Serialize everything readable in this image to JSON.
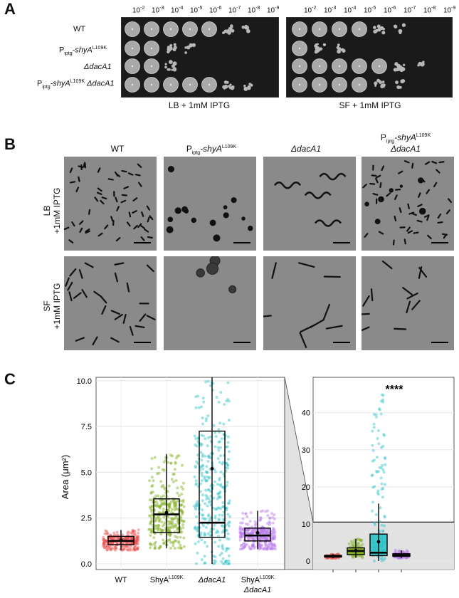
{
  "panels": {
    "A": "A",
    "B": "B",
    "C": "C"
  },
  "panelA": {
    "dilutions": [
      "10",
      "10",
      "10",
      "10",
      "10",
      "10",
      "10",
      "10"
    ],
    "dilution_exponents": [
      "-2",
      "-3",
      "-4",
      "-5",
      "-6",
      "-7",
      "-8",
      "-9"
    ],
    "strains": [
      {
        "base": "WT",
        "sub": "",
        "gene": "",
        "sup": "",
        "extra": ""
      },
      {
        "base": "P",
        "sub": "iptg",
        "gene": "-shyA",
        "sup": "L109K",
        "extra": ""
      },
      {
        "base": "",
        "sub": "",
        "gene": "ΔdacA1",
        "sup": "",
        "extra": ""
      },
      {
        "base": "P",
        "sub": "iptg",
        "gene": "-shyA",
        "sup": "L109K",
        "extra": " ΔdacA1"
      }
    ],
    "plate_captions": [
      "LB + 1mM IPTG",
      "SF + 1mM IPTG"
    ]
  },
  "panelB": {
    "columns": [
      {
        "line1": "WT",
        "base": "",
        "sub": "",
        "gene": "",
        "sup": ""
      },
      {
        "line1": "",
        "base": "P",
        "sub": "iptg",
        "gene": "-shyA",
        "sup": "L109K"
      },
      {
        "line1": "ΔdacA1",
        "base": "",
        "sub": "",
        "gene": "",
        "sup": ""
      },
      {
        "line1": "",
        "base": "P",
        "sub": "iptg",
        "gene": "-shyA",
        "sup": "L109K",
        "line2": "ΔdacA1"
      }
    ],
    "rows": [
      {
        "line1": "LB",
        "line2": "+1mM IPTG"
      },
      {
        "line1": "SF",
        "line2": "+1mM IPTG"
      }
    ]
  },
  "chart_data": [
    {
      "type": "box",
      "ylabel": "Area (μm²)",
      "ylim": [
        0,
        10.5
      ],
      "yticks": [
        "0.0",
        "2.5",
        "5.0",
        "7.5",
        "10.0"
      ],
      "ytick_values": [
        0,
        2.5,
        5,
        7.5,
        10
      ],
      "categories": [
        "WT",
        "ShyA",
        "ΔdacA1",
        "ShyA"
      ],
      "category_sup": [
        "",
        "L109K",
        "",
        "L109K"
      ],
      "category_line2": [
        "",
        "",
        "",
        "ΔdacA1"
      ],
      "colors": [
        "#e8534f",
        "#7fae1c",
        "#2ec4c7",
        "#b877e8"
      ],
      "boxes": [
        {
          "q1": 1.05,
          "median": 1.25,
          "q3": 1.5,
          "whisker_low": 0.75,
          "whisker_high": 1.85,
          "mean": 1.3
        },
        {
          "q1": 1.7,
          "median": 2.7,
          "q3": 3.55,
          "whisker_low": 0.85,
          "whisker_high": 6.0,
          "mean": 2.8
        },
        {
          "q1": 1.45,
          "median": 2.25,
          "q3": 7.25,
          "whisker_low": 0.0,
          "whisker_high": 10.5,
          "mean": 5.2
        },
        {
          "q1": 1.25,
          "median": 1.55,
          "q3": 1.95,
          "whisker_low": 0.8,
          "whisker_high": 2.9,
          "mean": 1.7
        }
      ]
    },
    {
      "type": "box",
      "ylim": [
        0,
        48
      ],
      "yticks": [
        "0",
        "10",
        "20",
        "30",
        "40"
      ],
      "ytick_values": [
        0,
        10,
        20,
        30,
        40
      ],
      "annotation": "****",
      "boxes": [
        {
          "q1": 1.05,
          "median": 1.25,
          "q3": 1.5,
          "whisker_low": 0.75,
          "whisker_high": 1.85,
          "mean": 1.3
        },
        {
          "q1": 1.7,
          "median": 2.7,
          "q3": 3.55,
          "whisker_low": 0.85,
          "whisker_high": 6.0,
          "mean": 2.8
        },
        {
          "q1": 1.45,
          "median": 2.25,
          "q3": 7.25,
          "whisker_low": 0.0,
          "whisker_high": 15.5,
          "mean": 5.2
        },
        {
          "q1": 1.25,
          "median": 1.55,
          "q3": 1.95,
          "whisker_low": 0.8,
          "whisker_high": 2.9,
          "mean": 1.7
        }
      ],
      "max_points": [
        1.9,
        6.0,
        46,
        3.0
      ]
    }
  ]
}
